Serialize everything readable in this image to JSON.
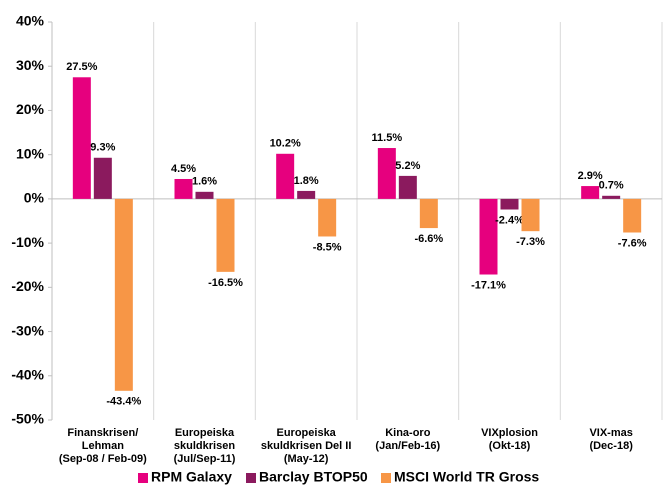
{
  "chart_data": {
    "type": "bar",
    "categories": [
      [
        "Finanskrisen/",
        "Lehman",
        "(Sep-08 / Feb-09)"
      ],
      [
        "Europeiska",
        "skuldkrisen",
        "(Jul/Sep-11)"
      ],
      [
        "Europeiska",
        "skuldkrisen Del II",
        "(May-12)"
      ],
      [
        "Kina-oro",
        "(Jan/Feb-16)"
      ],
      [
        "VIXplosion",
        "(Okt-18)"
      ],
      [
        "VIX-mas",
        "(Dec-18)"
      ]
    ],
    "series": [
      {
        "name": "RPM Galaxy",
        "color": "#e6007e",
        "values": [
          27.5,
          4.5,
          10.2,
          11.5,
          -17.1,
          2.9
        ],
        "value_labels": [
          "27.5%",
          "4.5%",
          "10.2%",
          "11.5%",
          "-17.1%",
          "2.9%"
        ]
      },
      {
        "name": "Barclay BTOP50",
        "color": "#8b1a5e",
        "values": [
          9.3,
          1.6,
          1.8,
          5.2,
          -2.4,
          0.7
        ],
        "value_labels": [
          "9.3%",
          "1.6%",
          "1.8%",
          "5.2%",
          "-2.4%",
          "0.7%"
        ]
      },
      {
        "name": "MSCI World TR Gross",
        "color": "#f79646",
        "values": [
          -43.4,
          -16.5,
          -8.5,
          -6.6,
          -7.3,
          -7.6
        ],
        "value_labels": [
          "-43.4%",
          "-16.5%",
          "-8.5%",
          "-6.6%",
          "-7.3%",
          "-7.6%"
        ]
      }
    ],
    "ylim": [
      -50,
      40
    ],
    "yticks": [
      {
        "value": -50,
        "label": "-50%"
      },
      {
        "value": -40,
        "label": "-40%"
      },
      {
        "value": -30,
        "label": "-30%"
      },
      {
        "value": -20,
        "label": "-20%"
      },
      {
        "value": -10,
        "label": "-10%"
      },
      {
        "value": 0,
        "label": "0%"
      },
      {
        "value": 10,
        "label": "10%"
      },
      {
        "value": 20,
        "label": "20%"
      },
      {
        "value": 30,
        "label": "30%"
      },
      {
        "value": 40,
        "label": "40%"
      }
    ],
    "grid": false,
    "legend": "bottom"
  }
}
